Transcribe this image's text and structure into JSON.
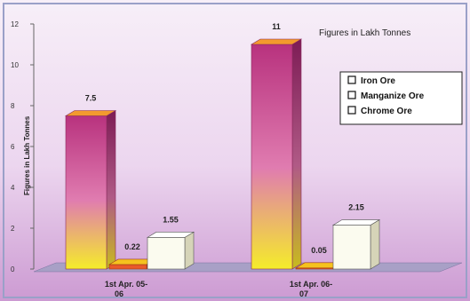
{
  "chart_data": {
    "type": "bar",
    "note": "Figures in Lakh Tonnes",
    "ylabel": "Figures in Lakh Tonnes",
    "ylim": [
      0,
      12
    ],
    "yticks": [
      0,
      2,
      4,
      6,
      8,
      10,
      12
    ],
    "categories": [
      [
        "1st Apr. 05-",
        "06"
      ],
      [
        "1st Apr. 06-",
        "07"
      ]
    ],
    "series": [
      {
        "name": "Iron Ore",
        "values": [
          7.5,
          11
        ],
        "labels": [
          "7.5",
          "11"
        ]
      },
      {
        "name": "Manganize Ore",
        "values": [
          0.22,
          0.05
        ],
        "labels": [
          "0.22",
          "0.05"
        ]
      },
      {
        "name": "Chrome Ore",
        "values": [
          1.55,
          2.15
        ],
        "labels": [
          "1.55",
          "2.15"
        ]
      }
    ],
    "legend_position": "right",
    "colors": {
      "iron_top": "#b8327e",
      "iron_bottom": "#f5ec2a",
      "manganese": "#e85a2a",
      "chrome": "#fbfbef",
      "floor": "#a8a0c6",
      "background_top": "#f7eff8",
      "background_bottom": "#cc9ad2"
    }
  }
}
